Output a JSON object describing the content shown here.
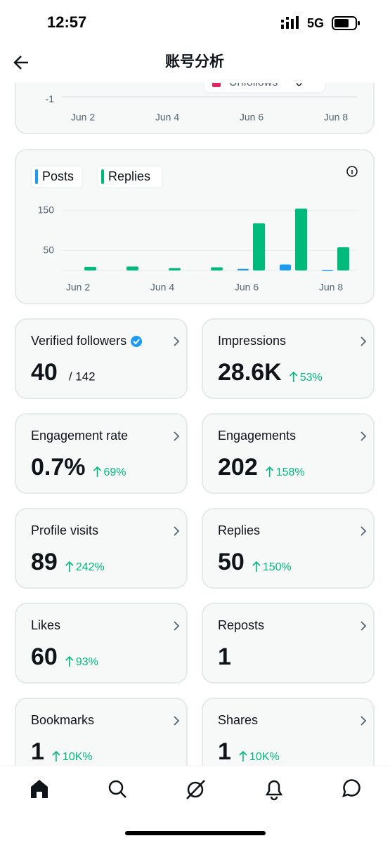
{
  "status_bar": {
    "time": "12:57",
    "network": "5G"
  },
  "header": {
    "title": "账号分析"
  },
  "chart_data": [
    {
      "type": "bar",
      "categories": [
        "Jun 2",
        null,
        "Jun 4",
        null,
        "Jun 6",
        null,
        "Jun 8"
      ],
      "yticks": [
        -1
      ],
      "ylim": [
        -1.5,
        1.5
      ],
      "grid": true,
      "tooltip": {
        "label": "Unfollows",
        "value": 0,
        "color": "#e0245e"
      }
    },
    {
      "type": "bar",
      "categories": [
        "Jun 2",
        null,
        "Jun 4",
        null,
        "Jun 6",
        null,
        "Jun 8"
      ],
      "series": [
        {
          "name": "Posts",
          "color": "#1d9bf0",
          "values": [
            0,
            0,
            0,
            0,
            4,
            15,
            1
          ]
        },
        {
          "name": "Replies",
          "color": "#00ba7c",
          "values": [
            9,
            10,
            6,
            8,
            118,
            155,
            58
          ]
        }
      ],
      "ylim": [
        0,
        160
      ],
      "yticks": [
        50,
        150
      ],
      "grid": true
    }
  ],
  "cards": [
    {
      "label": "Verified followers",
      "value": "40",
      "total": "/ 142",
      "verified": true
    },
    {
      "label": "Impressions",
      "value": "28.6K",
      "change": "53%"
    },
    {
      "label": "Engagement rate",
      "value": "0.7%",
      "change": "69%"
    },
    {
      "label": "Engagements",
      "value": "202",
      "change": "158%"
    },
    {
      "label": "Profile visits",
      "value": "89",
      "change": "242%"
    },
    {
      "label": "Replies",
      "value": "50",
      "change": "150%"
    },
    {
      "label": "Likes",
      "value": "60",
      "change": "93%"
    },
    {
      "label": "Reposts",
      "value": "1"
    },
    {
      "label": "Bookmarks",
      "value": "1",
      "change": "10K%"
    },
    {
      "label": "Shares",
      "value": "1",
      "change": "10K%"
    }
  ]
}
